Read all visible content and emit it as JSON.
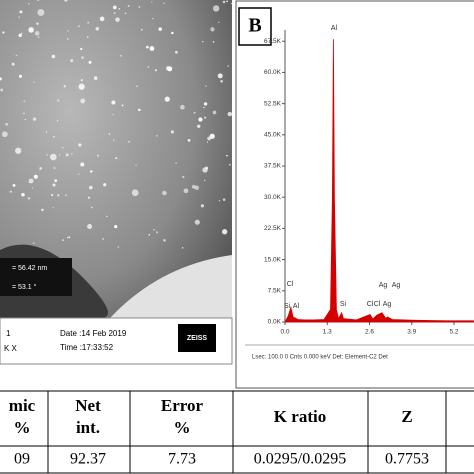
{
  "panel_a": {
    "measurements": [
      "= 56.42 nm",
      "= 53.1 °"
    ],
    "info": {
      "mag_line1": "1",
      "mag_line2": "K X",
      "date": "Date :14 Feb 2019",
      "time": "Time :17:33:52",
      "logo": "ZEISS"
    }
  },
  "chart_data": {
    "type": "area",
    "panel_label": "B",
    "color": "#d40000",
    "x": [
      0.0,
      0.1,
      0.18,
      0.25,
      0.4,
      0.6,
      0.9,
      1.2,
      1.4,
      1.46,
      1.49,
      1.52,
      1.58,
      1.65,
      1.74,
      1.8,
      2.2,
      2.62,
      2.7,
      2.82,
      2.98,
      3.1,
      3.15,
      3.3,
      4.0,
      5.0,
      5.8
    ],
    "values": [
      0,
      1.5,
      3.5,
      1.2,
      0.6,
      0.5,
      0.5,
      0.6,
      3,
      30,
      68,
      30,
      3,
      0.8,
      2.2,
      0.8,
      0.5,
      1.8,
      0.7,
      1.6,
      2.2,
      0.9,
      1.2,
      0.6,
      0.4,
      0.3,
      0.3
    ],
    "xlim": [
      0,
      5.8
    ],
    "ylim": [
      0,
      69
    ],
    "xticks": [
      {
        "value": 0,
        "label": "0.0"
      },
      1.3,
      2.6,
      3.9,
      5.2
    ],
    "yticks": [
      {
        "value": 0,
        "label": "0.0K"
      },
      {
        "value": 7.5,
        "label": "7.5K"
      },
      {
        "value": 15,
        "label": "15.0K"
      },
      {
        "value": 22.5,
        "label": "22.5K"
      },
      {
        "value": 30,
        "label": "30.0K"
      },
      {
        "value": 37.5,
        "label": "37.5K"
      },
      {
        "value": 45,
        "label": "45.0K"
      },
      {
        "value": 52.5,
        "label": "52.5K"
      },
      {
        "value": 60,
        "label": "60.0K"
      },
      {
        "value": 67.5,
        "label": "67.5K"
      }
    ],
    "annotations": [
      "Al",
      "Cl",
      "Si",
      "Al",
      "Si",
      "Cl",
      "Cl",
      "Ag",
      "Ag",
      "Ag"
    ],
    "footer": "Lsec: 100.0 0 Cnts 0.000 keV Det: Element-C2 Det"
  },
  "table": {
    "headers": [
      [
        "mic",
        "%"
      ],
      [
        "Net",
        "int."
      ],
      [
        "Error",
        "%"
      ],
      [
        "K ratio"
      ],
      [
        "Z"
      ]
    ],
    "rows": [
      [
        "09",
        "92.37",
        "7.73",
        "0.0295/0.0295",
        "0.7753"
      ]
    ]
  }
}
